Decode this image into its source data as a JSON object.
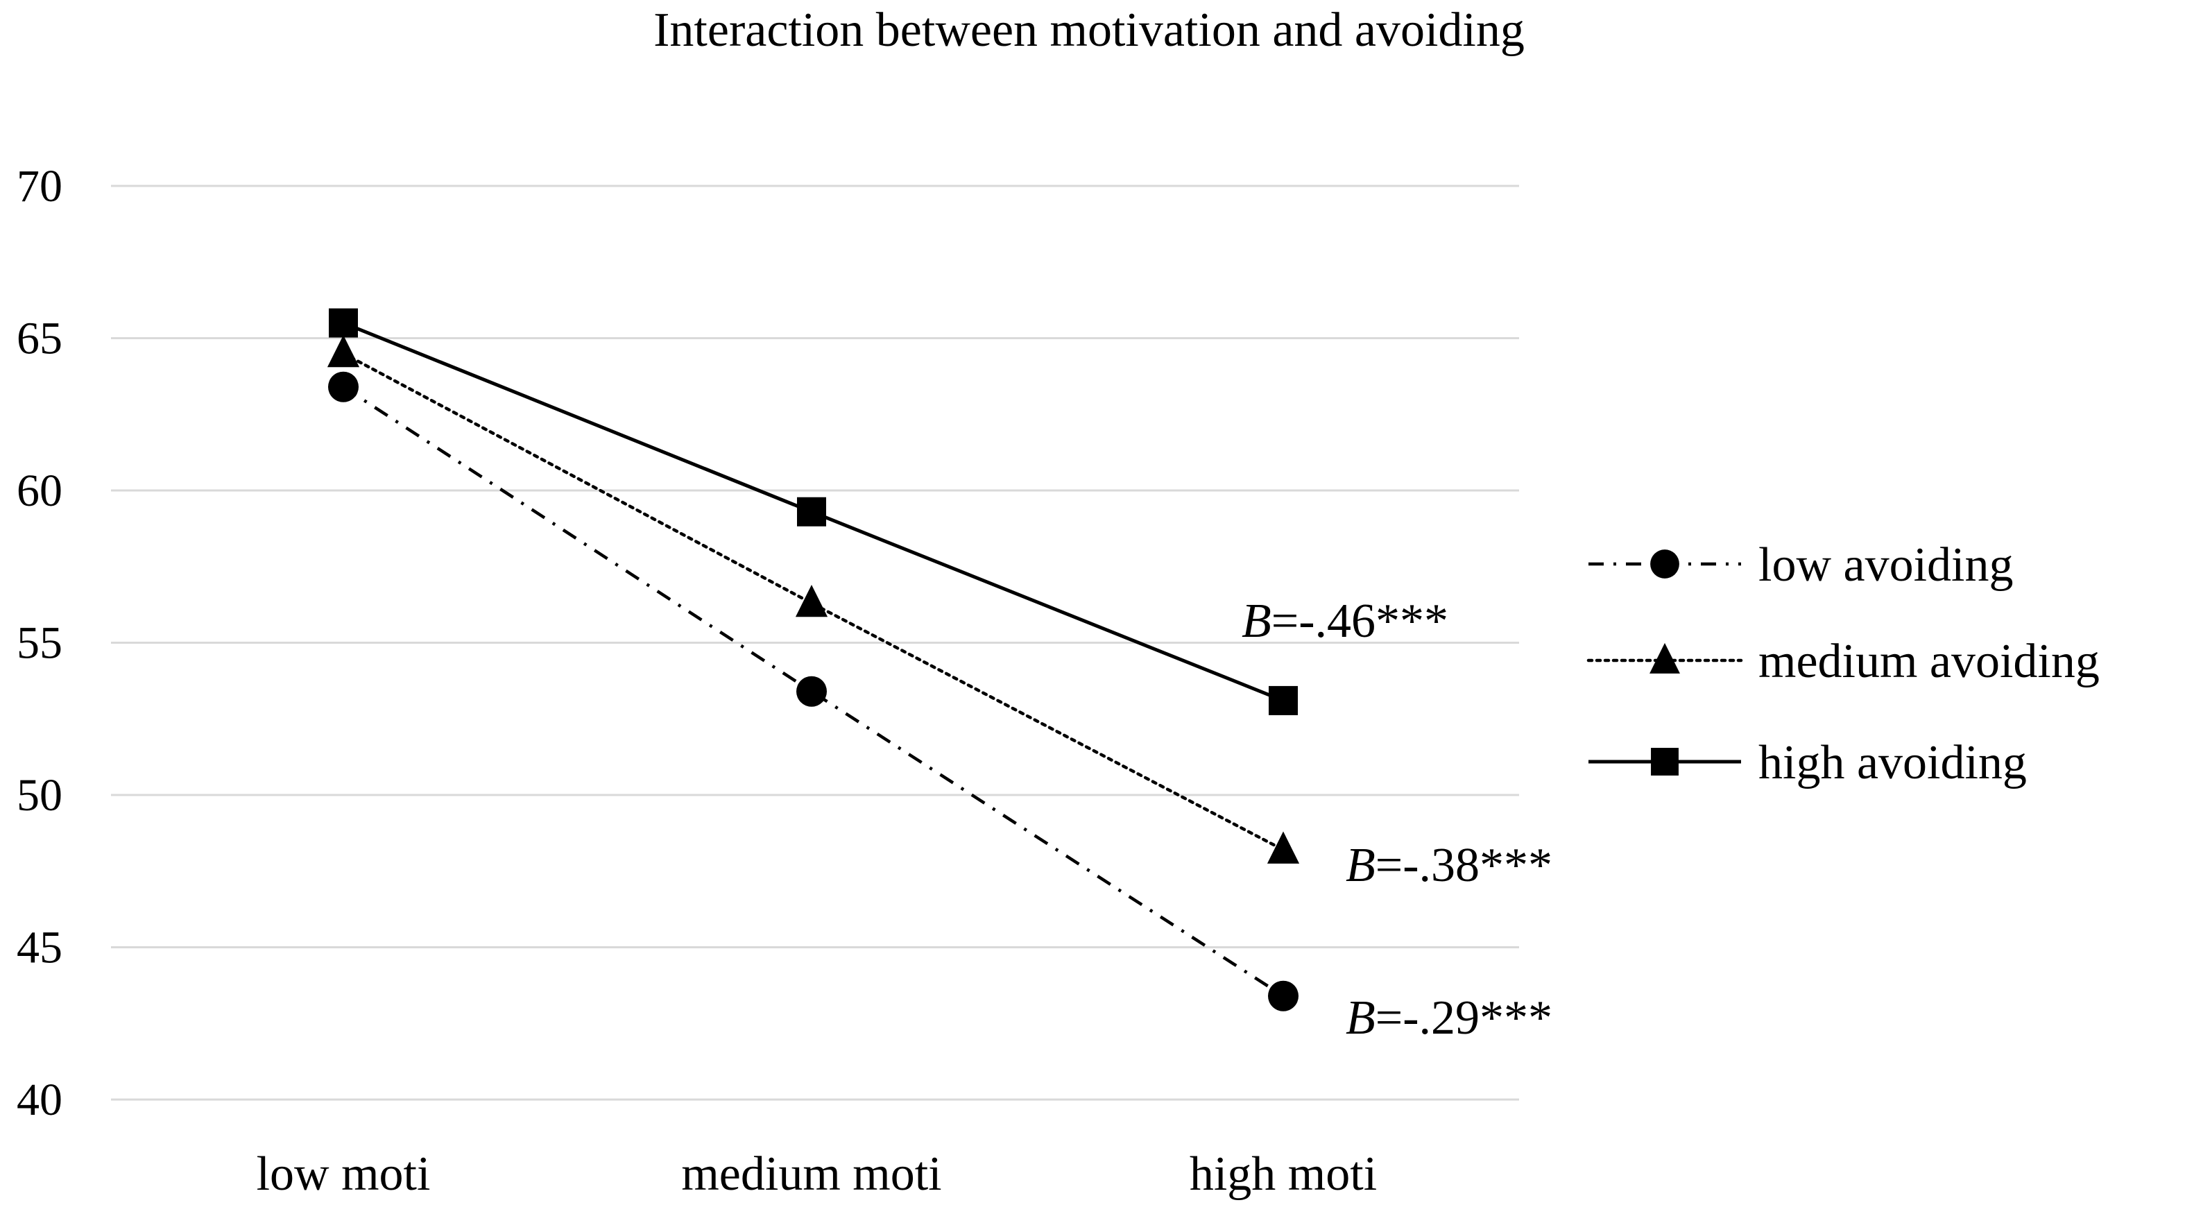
{
  "chart_data": {
    "type": "line",
    "title": "Interaction between motivation and avoiding",
    "xlabel": "",
    "ylabel": "",
    "categories": [
      "low moti",
      "medium moti",
      "high moti"
    ],
    "ylim": [
      40,
      70
    ],
    "yticks": [
      40,
      45,
      50,
      55,
      60,
      65,
      70
    ],
    "grid": true,
    "legend_position": "right",
    "series": [
      {
        "name": "low avoiding",
        "values": [
          63.4,
          53.4,
          43.4
        ],
        "marker": "circle",
        "line_style": "dash-dot",
        "annotation": {
          "italic": "B",
          "text": "=-.29***"
        }
      },
      {
        "name": "medium avoiding",
        "values": [
          64.5,
          56.3,
          48.2
        ],
        "marker": "triangle",
        "line_style": "dotted",
        "annotation": {
          "italic": "B",
          "text": "=-.38***"
        }
      },
      {
        "name": "high avoiding",
        "values": [
          65.5,
          59.3,
          53.1
        ],
        "marker": "square",
        "line_style": "solid",
        "annotation": {
          "italic": "B",
          "text": "=-.46***"
        }
      }
    ]
  }
}
